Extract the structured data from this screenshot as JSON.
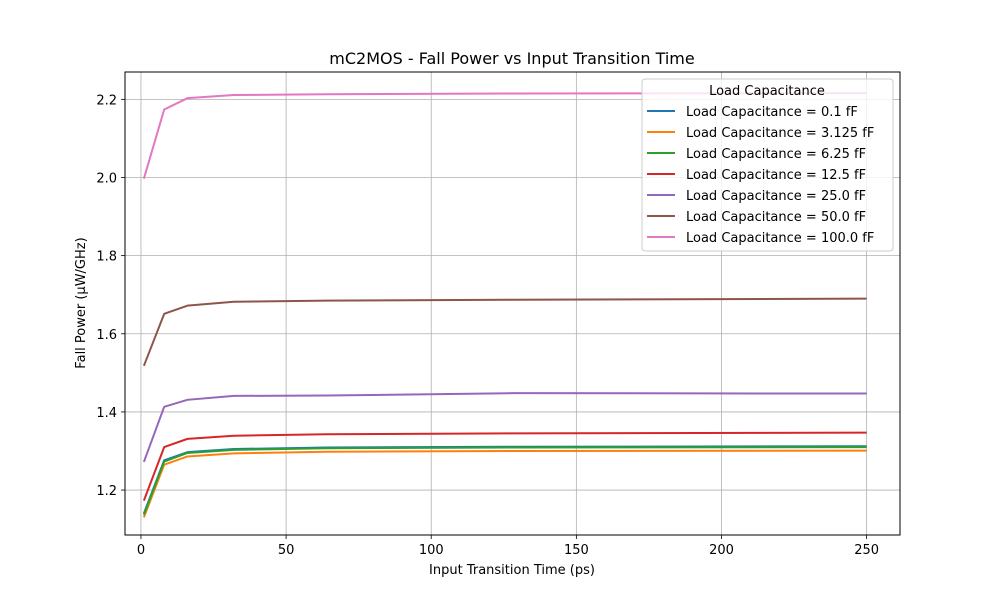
{
  "chart_data": {
    "type": "line",
    "title": "mC2MOS - Fall Power vs Input Transition Time",
    "xlabel": "Input Transition Time (ps)",
    "ylabel": "Fall Power (µW/GHz)",
    "xlim": [
      -5.5,
      261.5
    ],
    "ylim": [
      1.085,
      2.27
    ],
    "xticks": [
      0,
      50,
      100,
      150,
      200,
      250
    ],
    "yticks": [
      1.2,
      1.4,
      1.6,
      1.8,
      2.0,
      2.2
    ],
    "grid": true,
    "legend": {
      "title": "Load Capacitance",
      "placement": "upper right"
    },
    "x": [
      1,
      8,
      16,
      32,
      64,
      128,
      250
    ],
    "series": [
      {
        "name": "Load Capacitance = 0.1 fF",
        "color": "#1f77b4",
        "values": [
          1.14,
          1.276,
          1.297,
          1.305,
          1.309,
          1.311,
          1.312
        ]
      },
      {
        "name": "Load Capacitance = 3.125 fF",
        "color": "#ff7f0e",
        "values": [
          1.13,
          1.265,
          1.286,
          1.294,
          1.298,
          1.3,
          1.301
        ]
      },
      {
        "name": "Load Capacitance = 6.25 fF",
        "color": "#2ca02c",
        "values": [
          1.137,
          1.273,
          1.295,
          1.303,
          1.307,
          1.309,
          1.31
        ]
      },
      {
        "name": "Load Capacitance = 12.5 fF",
        "color": "#d62728",
        "values": [
          1.173,
          1.31,
          1.331,
          1.339,
          1.343,
          1.345,
          1.347
        ]
      },
      {
        "name": "Load Capacitance = 25.0 fF",
        "color": "#9467bd",
        "values": [
          1.272,
          1.413,
          1.431,
          1.441,
          1.442,
          1.448,
          1.447
        ]
      },
      {
        "name": "Load Capacitance = 50.0 fF",
        "color": "#8c564b",
        "values": [
          1.518,
          1.651,
          1.672,
          1.682,
          1.685,
          1.687,
          1.69
        ]
      },
      {
        "name": "Load Capacitance = 100.0 fF",
        "color": "#e377c2",
        "values": [
          1.997,
          2.174,
          2.203,
          2.211,
          2.213,
          2.215,
          2.216
        ]
      }
    ]
  }
}
